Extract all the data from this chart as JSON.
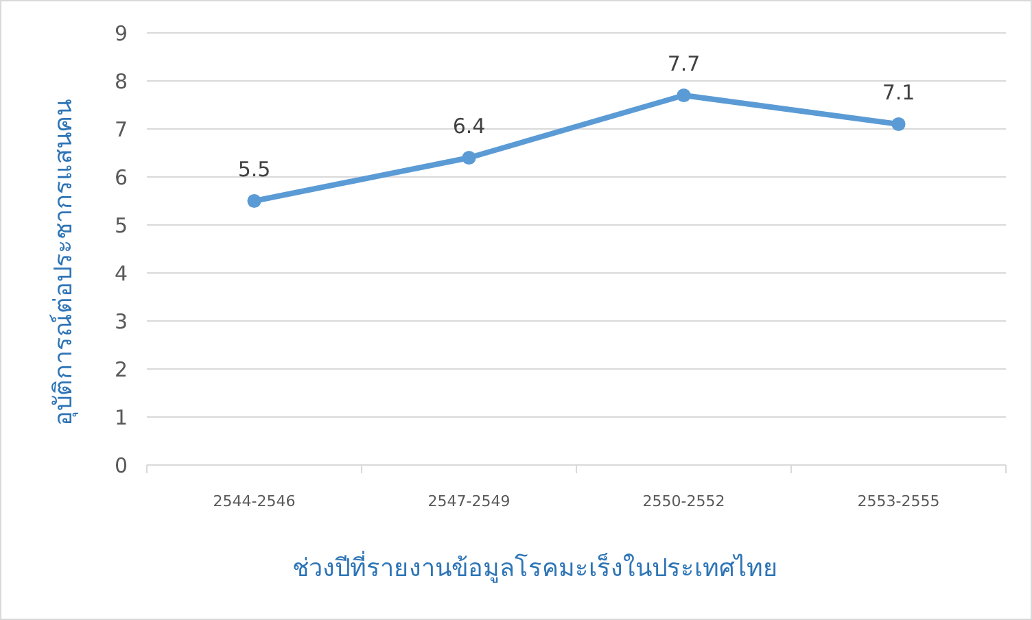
{
  "chart_data": {
    "type": "line",
    "xlabel": "ช่วงปีที่รายงานข้อมูลโรคมะเร็งในประเทศไทย",
    "ylabel": "อุบัติการณ์ต่อประชากรแสนคน",
    "categories": [
      "2544-2546",
      "2547-2549",
      "2550-2552",
      "2553-2555"
    ],
    "series": [
      {
        "color": "#5b9bd5",
        "values": [
          5.5,
          6.4,
          7.7,
          7.1
        ]
      }
    ],
    "ylim": [
      0,
      9
    ],
    "yticks": [
      0,
      1,
      2,
      3,
      4,
      5,
      6,
      7,
      8,
      9
    ],
    "grid": "y",
    "marker": "circle",
    "data_labels": true
  }
}
